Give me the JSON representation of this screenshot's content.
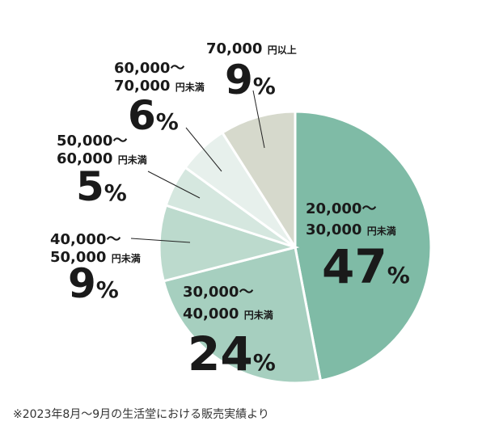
{
  "chart_data": {
    "type": "pie",
    "slices": [
      {
        "range_line1": "20,000～",
        "range_line2": "30,000",
        "unit": "円未満",
        "value": 47,
        "color": "#7fbba6"
      },
      {
        "range_line1": "30,000～",
        "range_line2": "40,000",
        "unit": "円未満",
        "value": 24,
        "color": "#a6cfbf"
      },
      {
        "range_line1": "40,000～",
        "range_line2": "50,000",
        "unit": "円未満",
        "value": 9,
        "color": "#bcdacd"
      },
      {
        "range_line1": "50,000～",
        "range_line2": "60,000",
        "unit": "円未満",
        "value": 5,
        "color": "#d5e7df"
      },
      {
        "range_line1": "60,000～",
        "range_line2": "70,000",
        "unit": "円未満",
        "value": 6,
        "color": "#e7f0ec"
      },
      {
        "range_line1": "",
        "range_line2": "70,000",
        "unit": "円以上",
        "value": 9,
        "color": "#d6d9cc"
      }
    ],
    "percent_sign": "%"
  },
  "footnote": "※2023年8月〜9月の生活堂における販売実績より"
}
